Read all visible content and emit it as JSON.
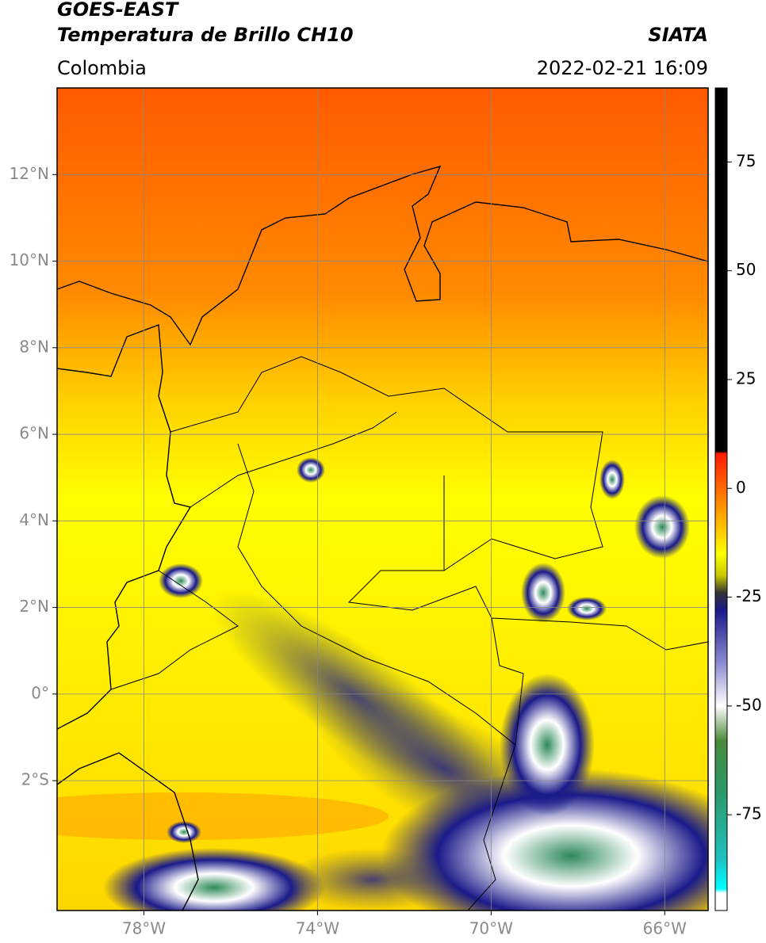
{
  "header": {
    "satellite": "GOES-EAST",
    "product": "Temperatura de Brillo CH10",
    "source": "SIATA",
    "region": "Colombia",
    "datetime": "2022-02-21 16:09"
  },
  "map": {
    "lon_range": [
      -80,
      -65
    ],
    "lat_range": [
      -5,
      14
    ],
    "grid": true,
    "x_ticks": [
      {
        "value": -78,
        "label": "78°W"
      },
      {
        "value": -74,
        "label": "74°W"
      },
      {
        "value": -70,
        "label": "70°W"
      },
      {
        "value": -66,
        "label": "66°W"
      }
    ],
    "y_ticks": [
      {
        "value": 12,
        "label": "12°N"
      },
      {
        "value": 10,
        "label": "10°N"
      },
      {
        "value": 8,
        "label": "8°N"
      },
      {
        "value": 6,
        "label": "6°N"
      },
      {
        "value": 4,
        "label": "4°N"
      },
      {
        "value": 2,
        "label": "2°N"
      },
      {
        "value": 0,
        "label": "0°"
      },
      {
        "value": -2,
        "label": "2°S"
      }
    ]
  },
  "colorbar": {
    "range": [
      -97,
      92
    ],
    "ticks": [
      75,
      50,
      25,
      0,
      -25,
      -50,
      -75
    ],
    "colormap": [
      {
        "value": 92,
        "color": "#000000"
      },
      {
        "value": 8.5,
        "color": "#000000"
      },
      {
        "value": 8,
        "color": "#ff1a00"
      },
      {
        "value": -5,
        "color": "#ff9a00"
      },
      {
        "value": -15,
        "color": "#ffff00"
      },
      {
        "value": -20,
        "color": "#c8c800"
      },
      {
        "value": -24,
        "color": "#333333"
      },
      {
        "value": -28,
        "color": "#1a1a8a"
      },
      {
        "value": -40,
        "color": "#8a8ad0"
      },
      {
        "value": -50,
        "color": "#ffffff"
      },
      {
        "value": -58,
        "color": "#4a8a3a"
      },
      {
        "value": -70,
        "color": "#2a9a6a"
      },
      {
        "value": -85,
        "color": "#20c0c0"
      },
      {
        "value": -92,
        "color": "#00ffff"
      },
      {
        "value": -93,
        "color": "#ffffff"
      },
      {
        "value": -97,
        "color": "#ffffff"
      }
    ]
  }
}
